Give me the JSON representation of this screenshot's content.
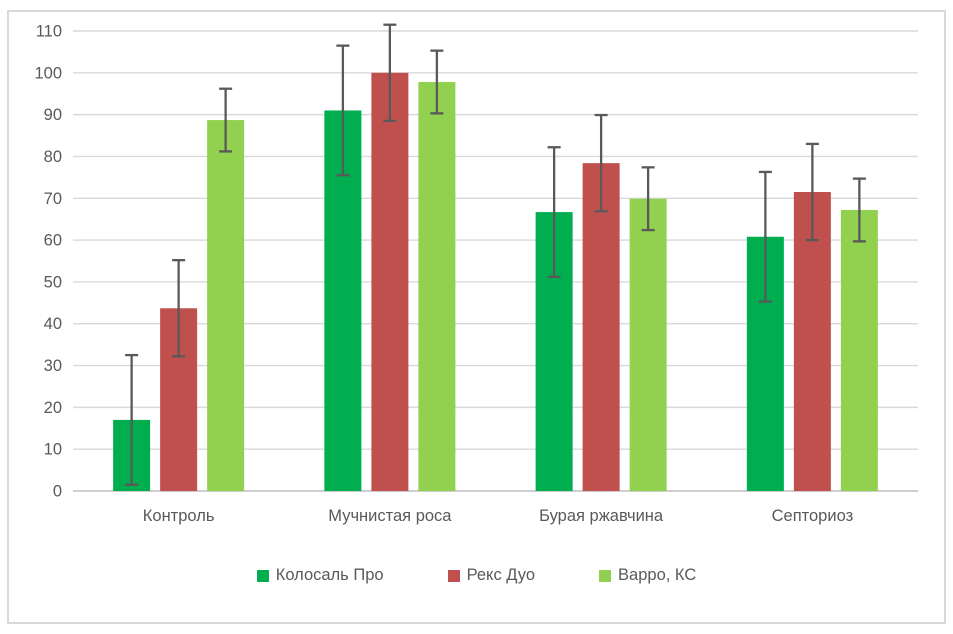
{
  "chart_data": {
    "type": "bar",
    "title": "",
    "categories": [
      "Контроль",
      "Мучнистая роса",
      "Бурая ржавчина",
      "Септориоз"
    ],
    "series": [
      {
        "name": "Колосаль Про",
        "color": "#00AE50",
        "values": [
          17,
          91,
          66.7,
          60.8
        ],
        "error_margin": 15.5
      },
      {
        "name": "Рекс Дуо",
        "color": "#C0504D",
        "values": [
          43.7,
          100,
          78.4,
          71.5
        ],
        "error_margin": 11.5
      },
      {
        "name": "Варро, КС",
        "color": "#92D050",
        "values": [
          88.7,
          97.8,
          69.9,
          67.2
        ],
        "error_margin": 7.5
      }
    ],
    "ylim": [
      0,
      110
    ],
    "ytick_step": 10,
    "yticks": [
      0,
      10,
      20,
      30,
      40,
      50,
      60,
      70,
      80,
      90,
      100,
      110
    ],
    "xlabel": "",
    "ylabel": "",
    "grid": true,
    "legend_position": "bottom",
    "error_bars": true
  },
  "colors": {
    "background": "#FFFFFF",
    "gridline": "#D9D9D9",
    "axis_line": "#BFBFBF",
    "tick_text": "#595959",
    "error_bar": "#595959",
    "frame_border": "#D9D9D9"
  }
}
